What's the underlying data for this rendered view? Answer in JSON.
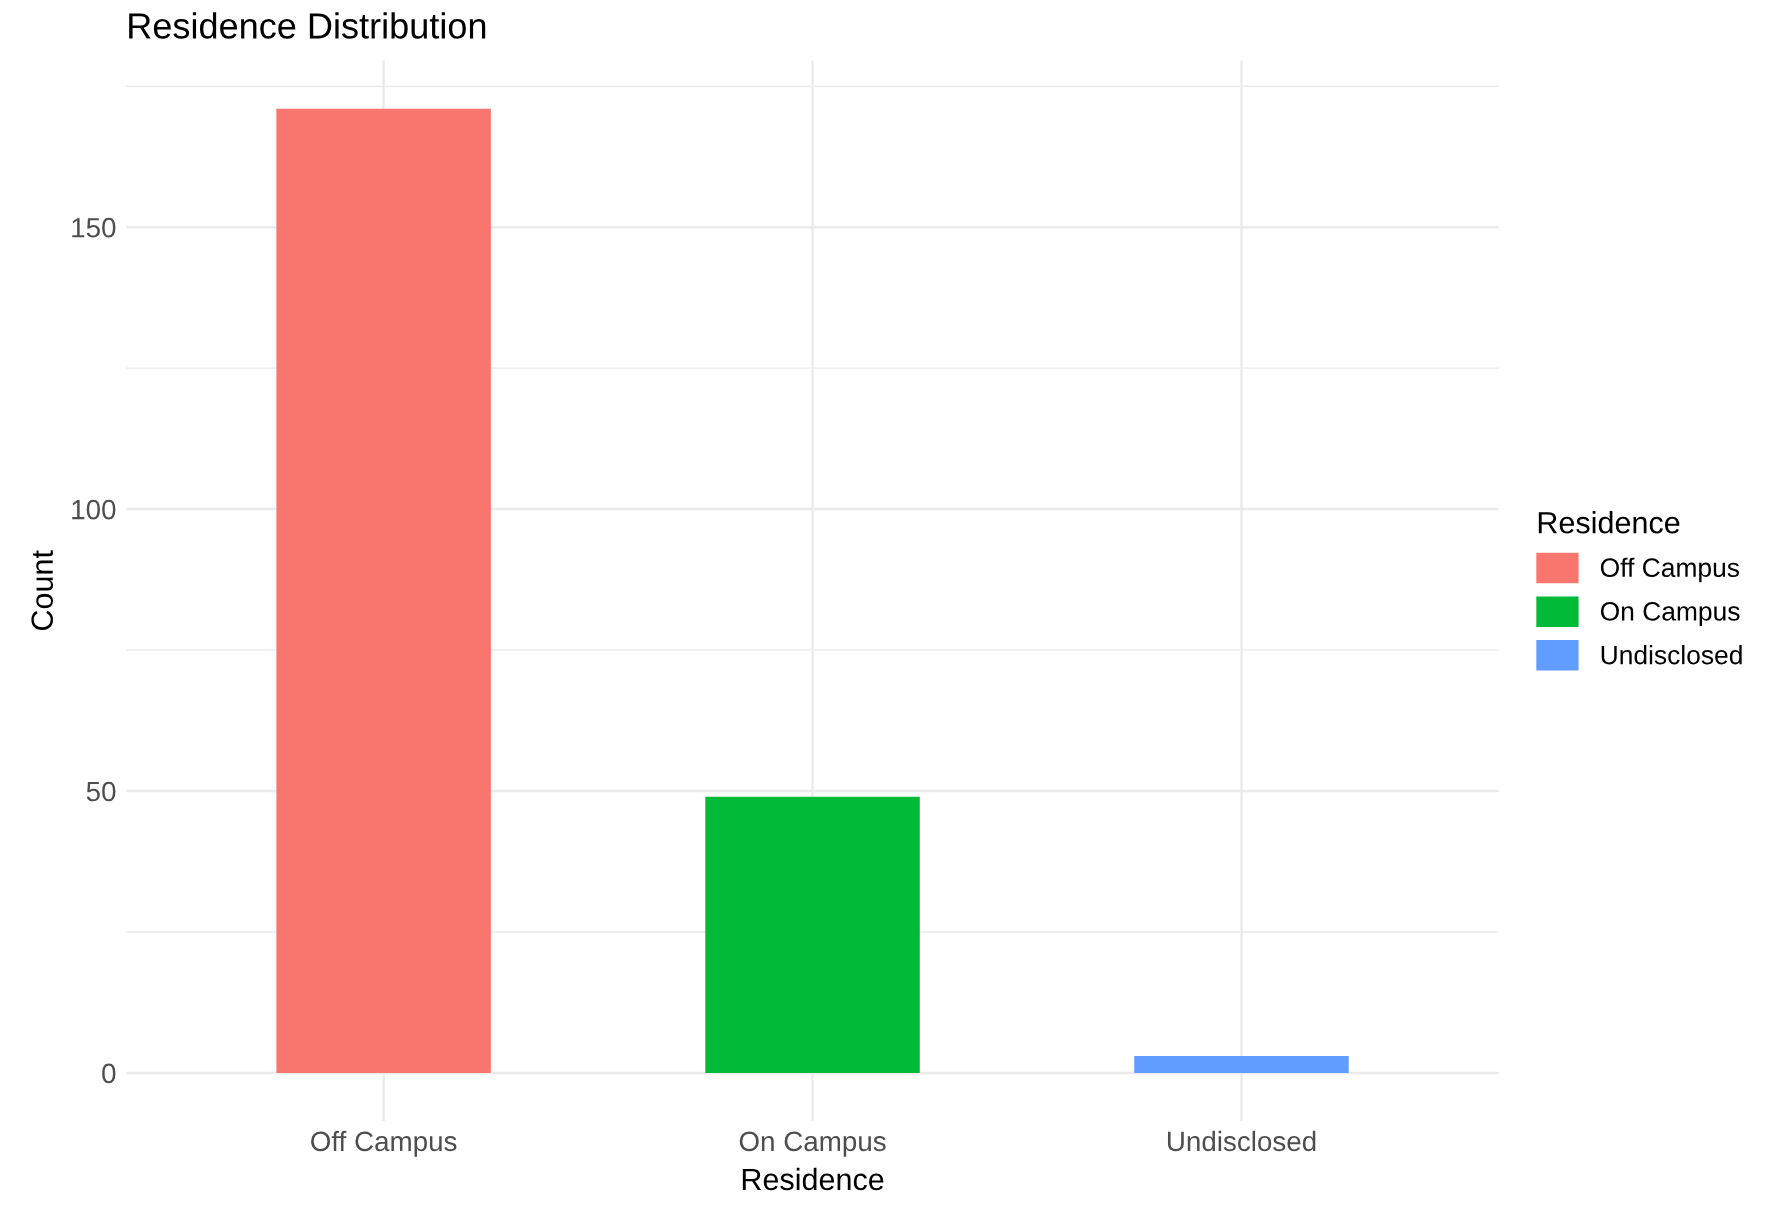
{
  "chart_data": {
    "type": "bar",
    "title": "Residence Distribution",
    "xlabel": "Residence",
    "ylabel": "Count",
    "legend_title": "Residence",
    "categories": [
      "Off Campus",
      "On Campus",
      "Undisclosed"
    ],
    "series": [
      {
        "name": "Off Campus",
        "color": "#f8766d",
        "values": [
          171,
          null,
          null
        ]
      },
      {
        "name": "On Campus",
        "color": "#00ba38",
        "values": [
          null,
          49,
          null
        ]
      },
      {
        "name": "Undisclosed",
        "color": "#619cff",
        "values": [
          null,
          null,
          3
        ]
      }
    ],
    "ylim": [
      -8.55,
      179.55
    ],
    "yticks": [
      0,
      {
        "value": 25,
        "label": null
      },
      50,
      {
        "value": 75,
        "label": null
      },
      100,
      {
        "value": 125,
        "label": null
      },
      150,
      {
        "value": 175,
        "label": null
      }
    ],
    "grid": true,
    "legend": "right"
  }
}
